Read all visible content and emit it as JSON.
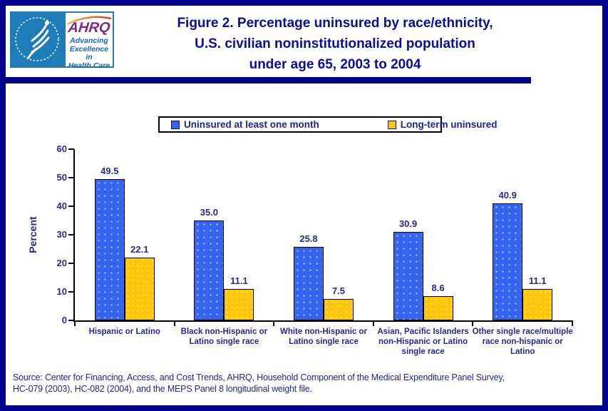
{
  "header": {
    "title": "Figure 2. Percentage uninsured by race/ethnicity,\nU.S. civilian noninstitutionalized population\nunder age 65, 2003 to 2004",
    "logo": {
      "ahrq_acronym": "AHRQ",
      "ahrq_tagline": "Advancing\nExcellence in\nHealth Care"
    }
  },
  "legend": [
    {
      "label": "Uninsured at least one month",
      "color": "#3565f0"
    },
    {
      "label": "Long-term uninsured",
      "color": "#ffc60a"
    }
  ],
  "chart_data": {
    "type": "bar",
    "title": "Figure 2. Percentage uninsured by race/ethnicity, U.S. civilian noninstitutionalized population under age 65, 2003 to 2004",
    "categories": [
      "Hispanic or Latino",
      "Black non-Hispanic or Latino single race",
      "White non-Hispanic or Latino single race",
      "Asian, Pacific Islanders non-Hispanic or Latino single race",
      "Other single race/multiple race non-hispanic or Latino"
    ],
    "series": [
      {
        "name": "Uninsured at least one month",
        "color": "#3565f0",
        "values": [
          49.5,
          35.0,
          25.8,
          30.9,
          40.9
        ]
      },
      {
        "name": "Long-term uninsured",
        "color": "#ffc60a",
        "values": [
          22.1,
          11.1,
          7.5,
          8.6,
          11.1
        ]
      }
    ],
    "ylabel": "Percent",
    "ylim": [
      0,
      60
    ],
    "ytick_step": 10,
    "value_labels": true,
    "grid": false,
    "legend_position": "top"
  },
  "colors": {
    "frame_navy": "#01018c",
    "title_navy": "#0b0b9d",
    "chart_text_navy": "#28288c",
    "bar_blue": "#3565f0",
    "bar_yellow": "#ffc60a",
    "hhs_blue": "#1e7db9",
    "ahrq_purple": "#7d2883"
  },
  "source_note": "Source: Center for Financing, Access, and Cost Trends, AHRQ, Household Component of the Medical Expenditure Panel Survey,\nHC-079 (2003), HC-082 (2004), and the MEPS Panel 8 longitudinal weight file."
}
